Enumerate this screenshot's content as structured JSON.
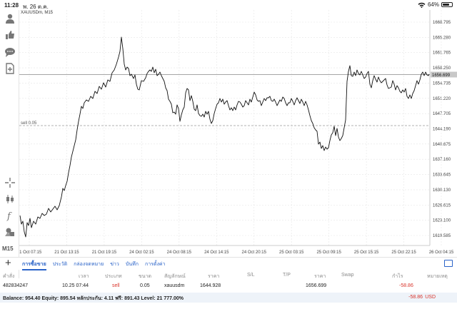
{
  "status": {
    "time": "11:28",
    "date": "พ. 26 ต.ค.",
    "battery": "64%"
  },
  "chart": {
    "symbol": "XAUUSDm, M15",
    "current_price": "1656.699",
    "sell_label": "sell 0.05",
    "price_ticks": [
      "1668.795",
      "1665.280",
      "1661.765",
      "1658.250",
      "1654.735",
      "1651.220",
      "1647.705",
      "1644.190",
      "1640.675",
      "1637.160",
      "1633.645",
      "1630.130",
      "1626.615",
      "1623.100",
      "1619.585"
    ],
    "time_ticks": [
      "21 Oct 07:15",
      "21 Oct 13:15",
      "21 Oct 19:15",
      "24 Oct 02:15",
      "24 Oct 08:15",
      "24 Oct 14:15",
      "24 Oct 20:15",
      "25 Oct 03:15",
      "25 Oct 09:15",
      "25 Oct 15:15",
      "25 Oct 22:15",
      "26 Oct 04:15"
    ],
    "colors": {
      "line": "#111111",
      "grid": "#e6e6e6",
      "price_line": "#888888",
      "order_line": "#999999",
      "price_tag_bg": "#c8c8c8"
    }
  },
  "toolbar": {
    "icons": [
      "person-icon",
      "thumbs-icon",
      "chat-icon",
      "add-document-icon",
      "crosshair-icon",
      "candles-icon",
      "function-icon",
      "objects-icon"
    ],
    "timeframe": "M15"
  },
  "tabs": [
    {
      "label": "การซื้อขาย",
      "active": true
    },
    {
      "label": "ประวัติ",
      "active": false
    },
    {
      "label": "กล่องจดหมาย",
      "active": false
    },
    {
      "label": "ข่าว",
      "active": false
    },
    {
      "label": "บันทึก",
      "active": false
    },
    {
      "label": "การตั้งค่า",
      "active": false
    }
  ],
  "table": {
    "headers": {
      "order": "คำสั่ง",
      "time": "เวลา",
      "type": "ประเภท",
      "volume": "ขนาด",
      "symbol": "สัญลักษณ์",
      "price": "ราคา",
      "sl": "S/L",
      "tp": "T/P",
      "price2": "ราคา",
      "swap": "Swap",
      "profit": "กำไร",
      "comment": "หมายเหตุ"
    },
    "row": {
      "order": "482834247",
      "time": "10.25 07:44",
      "type": "sell",
      "volume": "0.05",
      "symbol": "xauusdm",
      "price": "1644.928",
      "price2": "1656.699",
      "profit": "-58.86"
    }
  },
  "balance": {
    "text": "Balance: 954.40 Equity: 895.54 หลักประกัน: 4.11 ฟรี: 891.43 Level: 21 777.00%",
    "profit": "-58.86",
    "currency": "USD"
  }
}
